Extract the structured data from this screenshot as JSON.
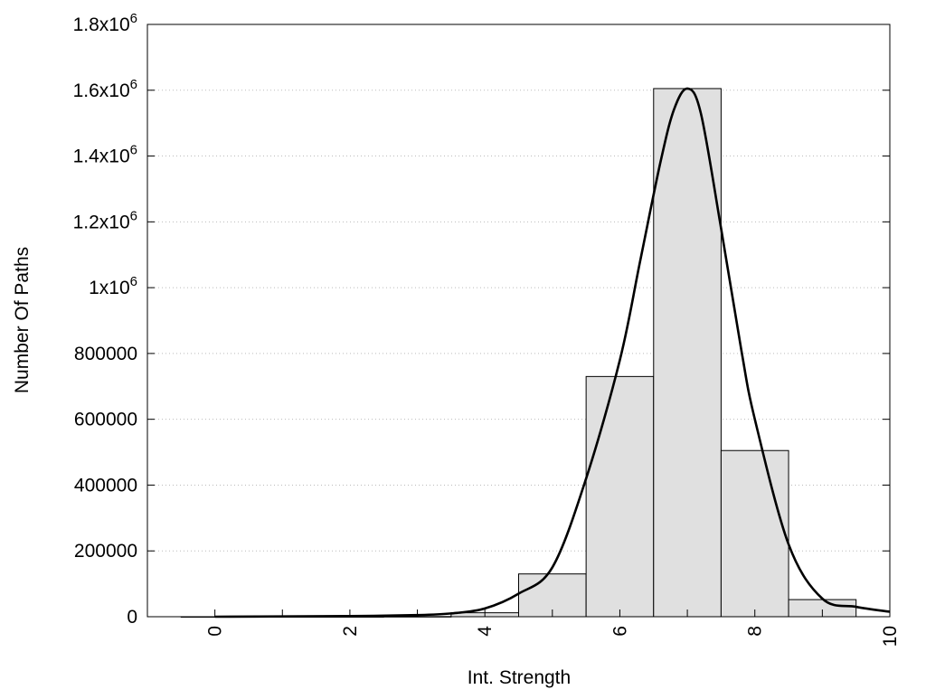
{
  "chart_data": {
    "type": "bar",
    "title": "",
    "xlabel": "Int. Strength",
    "ylabel": "Number Of Paths",
    "xlim": [
      -1,
      10
    ],
    "ylim": [
      0,
      1800000
    ],
    "grid": "horizontal dotted",
    "x_ticks": [
      {
        "value": 0,
        "label": "0"
      },
      {
        "value": 2,
        "label": "2"
      },
      {
        "value": 4,
        "label": "4"
      },
      {
        "value": 6,
        "label": "6"
      },
      {
        "value": 8,
        "label": "8"
      },
      {
        "value": 10,
        "label": "10"
      }
    ],
    "y_ticks": [
      {
        "value": 0,
        "base": "0",
        "exp": ""
      },
      {
        "value": 200000,
        "base": "200000",
        "exp": ""
      },
      {
        "value": 400000,
        "base": "400000",
        "exp": ""
      },
      {
        "value": 600000,
        "base": "600000",
        "exp": ""
      },
      {
        "value": 800000,
        "base": "800000",
        "exp": ""
      },
      {
        "value": 1000000,
        "base": "1x10",
        "exp": "6"
      },
      {
        "value": 1200000,
        "base": "1.2x10",
        "exp": "6"
      },
      {
        "value": 1400000,
        "base": "1.4x10",
        "exp": "6"
      },
      {
        "value": 1600000,
        "base": "1.6x10",
        "exp": "6"
      },
      {
        "value": 1800000,
        "base": "1.8x10",
        "exp": "6"
      }
    ],
    "bar_width": 1,
    "bars": [
      {
        "x": 0,
        "value": 0
      },
      {
        "x": 1,
        "value": 0
      },
      {
        "x": 2,
        "value": 0
      },
      {
        "x": 3,
        "value": 500
      },
      {
        "x": 4,
        "value": 12000
      },
      {
        "x": 5,
        "value": 130000
      },
      {
        "x": 6,
        "value": 730000
      },
      {
        "x": 7,
        "value": 1605000
      },
      {
        "x": 8,
        "value": 505000
      },
      {
        "x": 9,
        "value": 52000
      }
    ],
    "curve": {
      "x": [
        0,
        1,
        2,
        3,
        3.5,
        4,
        4.5,
        5,
        5.5,
        6,
        6.3,
        6.6,
        6.8,
        7,
        7.2,
        7.5,
        7.8,
        8,
        8.5,
        9,
        9.5,
        10
      ],
      "y": [
        0,
        1000,
        2000,
        5000,
        10000,
        25000,
        70000,
        150000,
        420000,
        780000,
        1080000,
        1380000,
        1540000,
        1605000,
        1530000,
        1180000,
        810000,
        600000,
        220000,
        55000,
        30000,
        15000
      ]
    },
    "colors": {
      "bar_fill": "#e0e0e0",
      "bar_stroke": "#000000",
      "curve": "#000000",
      "grid": "#bbbbbb"
    }
  }
}
